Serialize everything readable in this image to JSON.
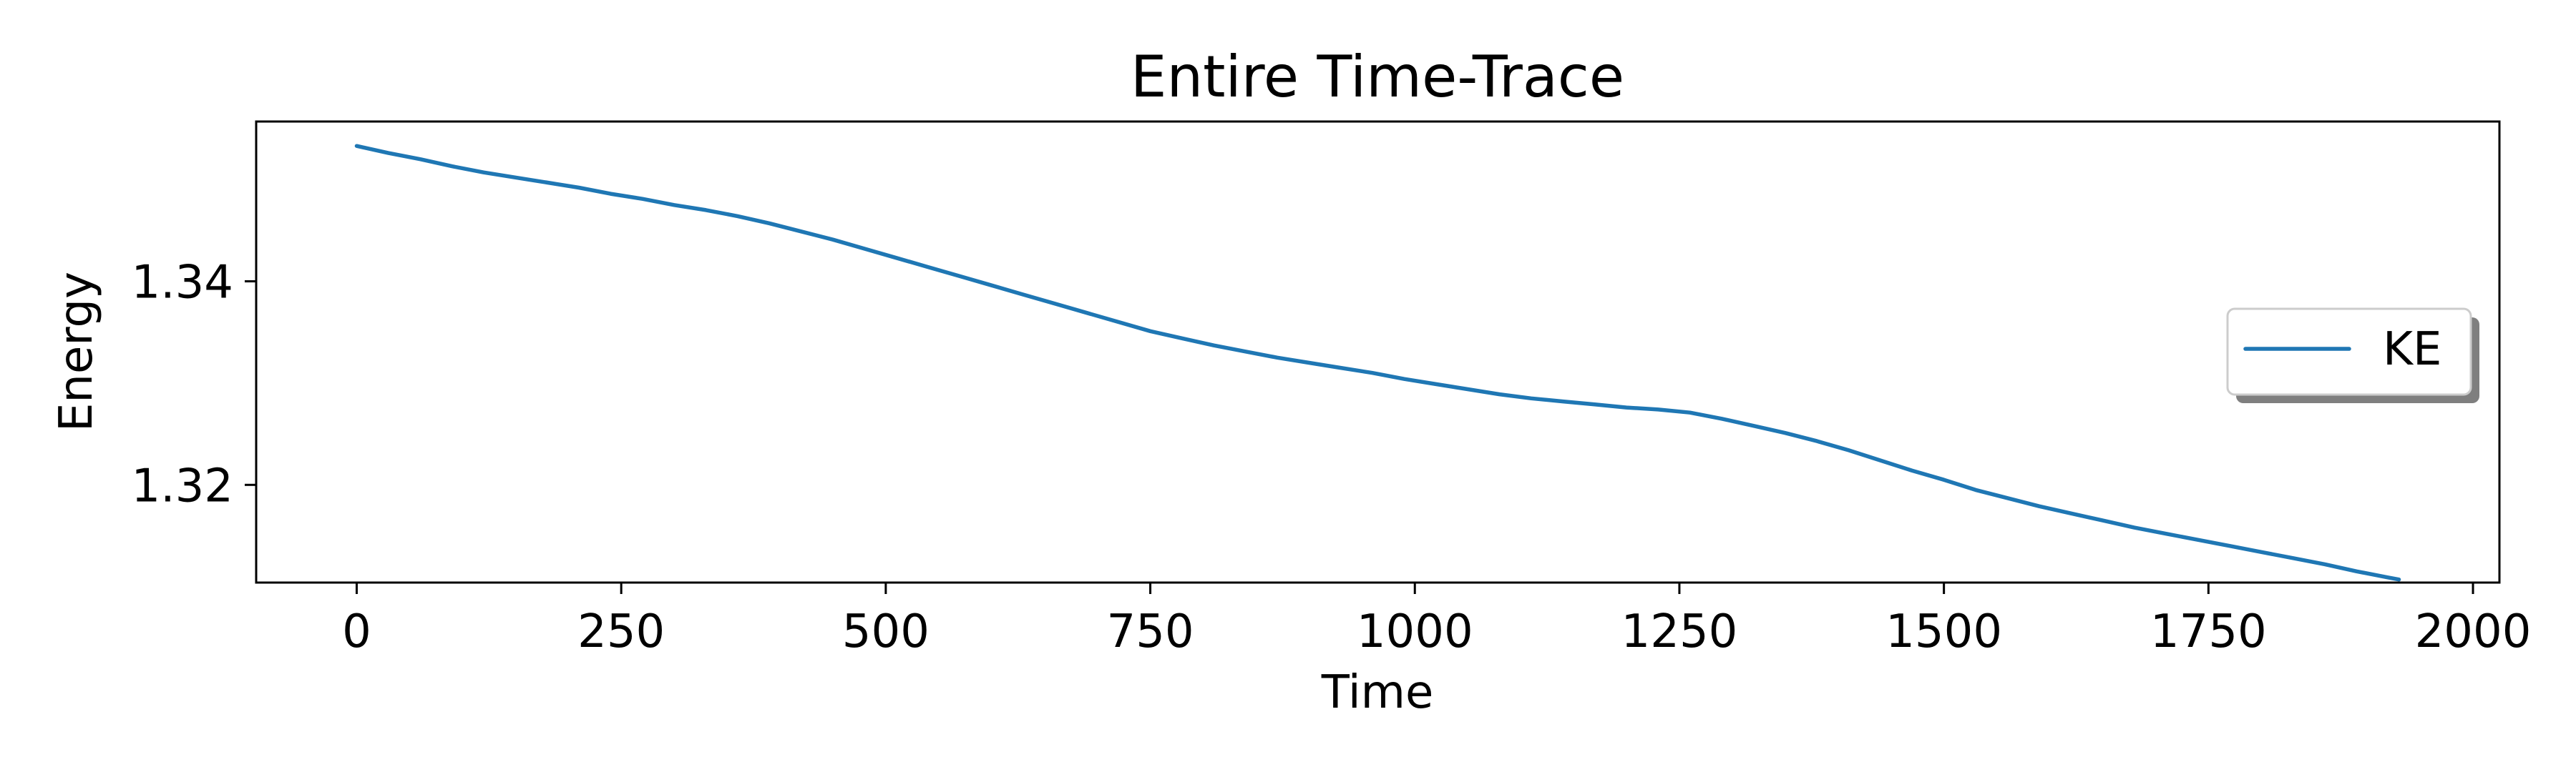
{
  "chart_data": {
    "type": "line",
    "title": "Entire Time-Trace",
    "xlabel": "Time",
    "ylabel": "Energy",
    "xlim": [
      -95,
      2025
    ],
    "ylim": [
      1.3104,
      1.3557
    ],
    "xticks": [
      0,
      250,
      500,
      750,
      1000,
      1250,
      1500,
      1750,
      2000
    ],
    "xtick_labels": [
      "0",
      "250",
      "500",
      "750",
      "1000",
      "1250",
      "1500",
      "1750",
      "2000"
    ],
    "yticks": [
      1.32,
      1.34
    ],
    "ytick_labels": [
      "1.32",
      "1.34"
    ],
    "grid": false,
    "legend": {
      "position": "center-right",
      "shadow": true
    },
    "series": [
      {
        "name": "KE",
        "color": "#1f77b4",
        "x": [
          0,
          30,
          60,
          90,
          120,
          150,
          180,
          210,
          240,
          270,
          300,
          330,
          360,
          390,
          420,
          450,
          480,
          510,
          540,
          570,
          600,
          630,
          660,
          690,
          720,
          750,
          780,
          810,
          840,
          870,
          900,
          930,
          960,
          990,
          1020,
          1050,
          1080,
          1110,
          1140,
          1170,
          1200,
          1230,
          1260,
          1290,
          1320,
          1350,
          1380,
          1410,
          1440,
          1470,
          1500,
          1530,
          1560,
          1590,
          1620,
          1650,
          1680,
          1710,
          1740,
          1770,
          1800,
          1830,
          1860,
          1890,
          1920,
          1930
        ],
        "values": [
          1.3533,
          1.3526,
          1.352,
          1.3513,
          1.3507,
          1.3502,
          1.3497,
          1.3492,
          1.3486,
          1.3481,
          1.3475,
          1.347,
          1.3464,
          1.3457,
          1.3449,
          1.3441,
          1.3432,
          1.3423,
          1.3414,
          1.3405,
          1.3396,
          1.3387,
          1.3378,
          1.3369,
          1.336,
          1.3351,
          1.3344,
          1.3337,
          1.3331,
          1.3325,
          1.332,
          1.3315,
          1.331,
          1.3304,
          1.3299,
          1.3294,
          1.3289,
          1.3285,
          1.3282,
          1.3279,
          1.3276,
          1.3274,
          1.3271,
          1.3265,
          1.3258,
          1.3251,
          1.3243,
          1.3234,
          1.3224,
          1.3214,
          1.3205,
          1.3195,
          1.3187,
          1.3179,
          1.3172,
          1.3165,
          1.3158,
          1.3152,
          1.3146,
          1.314,
          1.3134,
          1.3128,
          1.3122,
          1.3115,
          1.3109,
          1.3107
        ]
      }
    ]
  }
}
